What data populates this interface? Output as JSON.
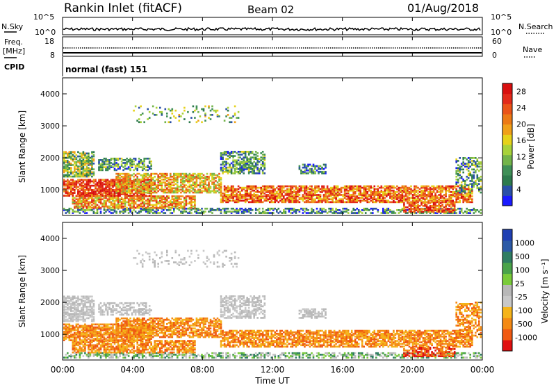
{
  "header": {
    "station": "Rankin Inlet (fitACF)",
    "beam": "Beam 02",
    "date": "01/Aug/2018"
  },
  "left_labels": {
    "nsky": "N.Sky",
    "freq_line1": "Freq.",
    "freq_line2": "[MHz]",
    "cpid": "CPID"
  },
  "right_labels": {
    "nsearch": "N.Search",
    "nave": "Nave"
  },
  "mode_text": "normal (fast) 151",
  "colors": {
    "power_scale": [
      "#1a1aff",
      "#2a4fa8",
      "#2d7a4d",
      "#3f8f57",
      "#73b44a",
      "#a8d23a",
      "#e6d21a",
      "#f0a019",
      "#ec7a15",
      "#ea5418",
      "#e22a1a",
      "#d80f0f"
    ],
    "velocity_scale": [
      "#e01010",
      "#f05a12",
      "#f48a14",
      "#f5b41a",
      "#c8c8c8",
      "#b8b8b8",
      "#7acb3a",
      "#4aa34a",
      "#2f7d62",
      "#2c5aa6",
      "#1f3fb2"
    ]
  },
  "chart_data": [
    {
      "type": "line",
      "title": "",
      "series": [
        {
          "name": "N.Sky"
        },
        {
          "name": "N.Search"
        }
      ],
      "y_ticks_left": [
        "10^5",
        "10^0"
      ],
      "y_ticks_right": [
        "10^5",
        "10^0"
      ],
      "x_range": [
        "00:00",
        "24:00"
      ]
    },
    {
      "type": "line",
      "series": [
        {
          "name": "Freq. [MHz]",
          "approx_value": 10.5
        },
        {
          "name": "Nave",
          "approx_value": 22
        }
      ],
      "y_ticks_left": [
        "18",
        "8"
      ],
      "y_ticks_right": [
        "60",
        "0"
      ]
    },
    {
      "type": "heatmap",
      "ylabel": "Slant Range [km]",
      "y_ticks": [
        "1000",
        "2000",
        "3000",
        "4000"
      ],
      "ylim": [
        200,
        4500
      ],
      "colorbar_label": "Power [dB]",
      "colorbar_ticks": [
        "4",
        "8",
        "12",
        "16",
        "20",
        "24",
        "28"
      ],
      "colorbar_range": [
        0,
        30
      ]
    },
    {
      "type": "heatmap",
      "ylabel": "Slant Range [km]",
      "y_ticks": [
        "1000",
        "2000",
        "3000",
        "4000"
      ],
      "ylim": [
        200,
        4500
      ],
      "colorbar_label": "Velocity [m s⁻¹]",
      "colorbar_ticks": [
        "-1000",
        "-500",
        "-100",
        "-25",
        "25",
        "100",
        "500",
        "1000"
      ],
      "xlabel": "Time UT",
      "x_ticks": [
        "00:00",
        "04:00",
        "08:00",
        "12:00",
        "16:00",
        "20:00",
        "00:00"
      ]
    }
  ]
}
